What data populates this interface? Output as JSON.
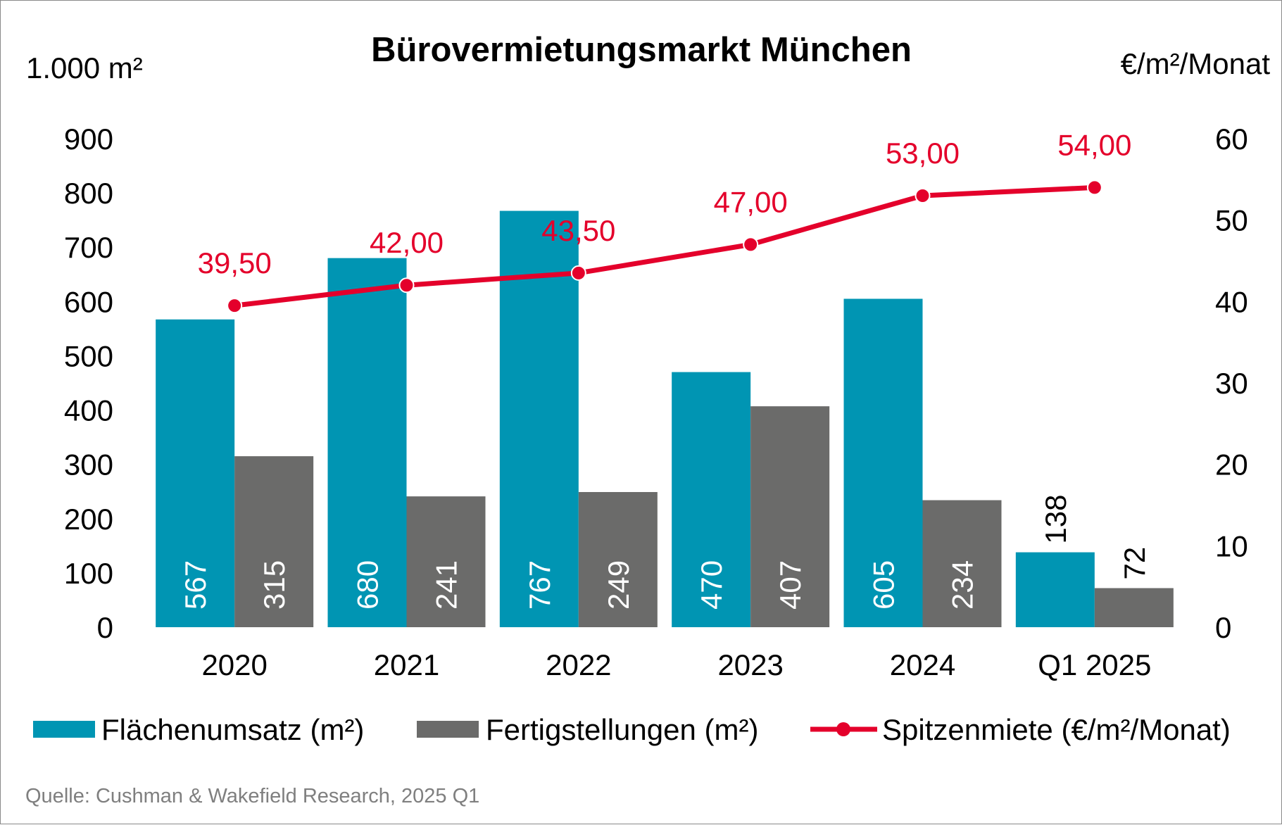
{
  "chart_data": {
    "type": "bar",
    "title": "Bürovermietungsmarkt München",
    "y_left_label": "1.000 m²",
    "y_right_label": "€/m²/Monat",
    "categories": [
      "2020",
      "2021",
      "2022",
      "2023",
      "2024",
      "Q1 2025"
    ],
    "y_left_ticks": [
      "0",
      "100",
      "200",
      "300",
      "400",
      "500",
      "600",
      "700",
      "800",
      "900"
    ],
    "y_right_ticks": [
      "0",
      "10",
      "20",
      "30",
      "40",
      "50",
      "60"
    ],
    "ylim_left": [
      0,
      900
    ],
    "ylim_right": [
      0,
      60
    ],
    "series": [
      {
        "name": "Flächenumsatz (m²)",
        "kind": "bar",
        "axis": "left",
        "color": "#0095b3",
        "values": [
          567,
          680,
          767,
          470,
          605,
          138
        ],
        "labels": [
          "567",
          "680",
          "767",
          "470",
          "605",
          "138"
        ]
      },
      {
        "name": "Fertigstellungen (m²)",
        "kind": "bar",
        "axis": "left",
        "color": "#6b6b6a",
        "values": [
          315,
          241,
          249,
          407,
          234,
          72
        ],
        "labels": [
          "315",
          "241",
          "249",
          "407",
          "234",
          "72"
        ]
      },
      {
        "name": "Spitzenmiete (€/m²/Monat)",
        "kind": "line",
        "axis": "right",
        "color": "#e4002b",
        "values": [
          39.5,
          42.0,
          43.5,
          47.0,
          53.0,
          54.0
        ],
        "labels": [
          "39,50",
          "42,00",
          "43,50",
          "47,00",
          "53,00",
          "54,00"
        ]
      }
    ],
    "grid": false,
    "legend_position": "bottom",
    "source": "Quelle: Cushman & Wakefield Research, 2025 Q1"
  }
}
